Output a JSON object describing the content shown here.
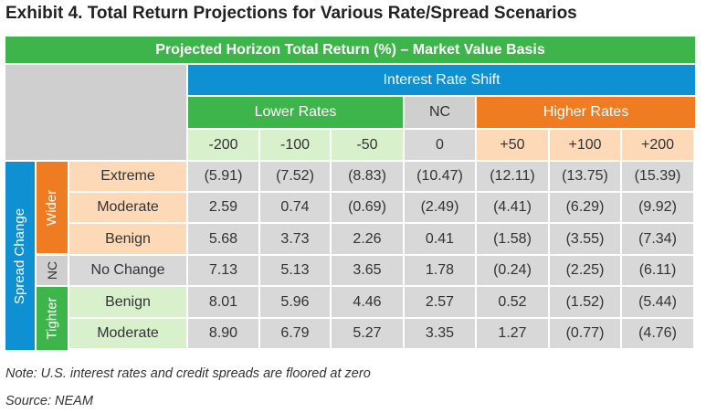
{
  "title": "Exhibit 4. Total Return Projections for Various Rate/Spread Scenarios",
  "header": "Projected Horizon Total Return (%) – Market Value Basis",
  "rate_shift_label": "Interest Rate Shift",
  "groups": {
    "lower": "Lower Rates",
    "nc": "NC",
    "higher": "Higher Rates"
  },
  "columns": [
    "-200",
    "-100",
    "-50",
    "0",
    "+50",
    "+100",
    "+200"
  ],
  "spread_change_label": "Spread Change",
  "spread_groups": {
    "wider": "Wider",
    "nc": "NC",
    "tighter": "Tighter"
  },
  "rows": [
    {
      "label": "Extreme",
      "group": "wider",
      "values": [
        "(5.91)",
        "(7.52)",
        "(8.83)",
        "(10.47)",
        "(12.11)",
        "(13.75)",
        "(15.39)"
      ]
    },
    {
      "label": "Moderate",
      "group": "wider",
      "values": [
        "2.59",
        "0.74",
        "(0.69)",
        "(2.49)",
        "(4.41)",
        "(6.29)",
        "(9.92)"
      ]
    },
    {
      "label": "Benign",
      "group": "wider",
      "values": [
        "5.68",
        "3.73",
        "2.26",
        "0.41",
        "(1.58)",
        "(3.55)",
        "(7.34)"
      ]
    },
    {
      "label": "No Change",
      "group": "nc",
      "values": [
        "7.13",
        "5.13",
        "3.65",
        "1.78",
        "(0.24)",
        "(2.25)",
        "(6.11)"
      ]
    },
    {
      "label": "Benign",
      "group": "tighter",
      "values": [
        "8.01",
        "5.96",
        "4.46",
        "2.57",
        "0.52",
        "(1.52)",
        "(5.44)"
      ]
    },
    {
      "label": "Moderate",
      "group": "tighter",
      "values": [
        "8.90",
        "6.79",
        "5.27",
        "3.35",
        "1.27",
        "(0.77)",
        "(4.76)"
      ]
    }
  ],
  "chart_data": {
    "type": "table",
    "title": "Exhibit 4. Total Return Projections for Various Rate/Spread Scenarios",
    "subtitle": "Projected Horizon Total Return (%) – Market Value Basis",
    "x": [
      "-200",
      "-100",
      "-50",
      "0",
      "+50",
      "+100",
      "+200"
    ],
    "xlabel": "Interest Rate Shift",
    "ylabel": "Spread Change",
    "series": [
      {
        "name": "Wider Extreme",
        "values": [
          -5.91,
          -7.52,
          -8.83,
          -10.47,
          -12.11,
          -13.75,
          -15.39
        ]
      },
      {
        "name": "Wider Moderate",
        "values": [
          2.59,
          0.74,
          -0.69,
          -2.49,
          -4.41,
          -6.29,
          -9.92
        ]
      },
      {
        "name": "Wider Benign",
        "values": [
          5.68,
          3.73,
          2.26,
          0.41,
          -1.58,
          -3.55,
          -7.34
        ]
      },
      {
        "name": "No Change",
        "values": [
          7.13,
          5.13,
          3.65,
          1.78,
          -0.24,
          -2.25,
          -6.11
        ]
      },
      {
        "name": "Tighter Benign",
        "values": [
          8.01,
          5.96,
          4.46,
          2.57,
          0.52,
          -1.52,
          -5.44
        ]
      },
      {
        "name": "Tighter Moderate",
        "values": [
          8.9,
          6.79,
          5.27,
          3.35,
          1.27,
          -0.77,
          -4.76
        ]
      }
    ]
  },
  "notes": {
    "note": "Note: U.S. interest rates and credit spreads are floored at zero",
    "source": "Source: NEAM"
  },
  "colors": {
    "green": "#3db54a",
    "blue": "#0e90d2",
    "orange": "#f07c22",
    "light_green": "#d9f0cd",
    "light_orange": "#fdd9b8",
    "gray": "#d8d8d8",
    "header_gray": "#cfcfcf"
  }
}
